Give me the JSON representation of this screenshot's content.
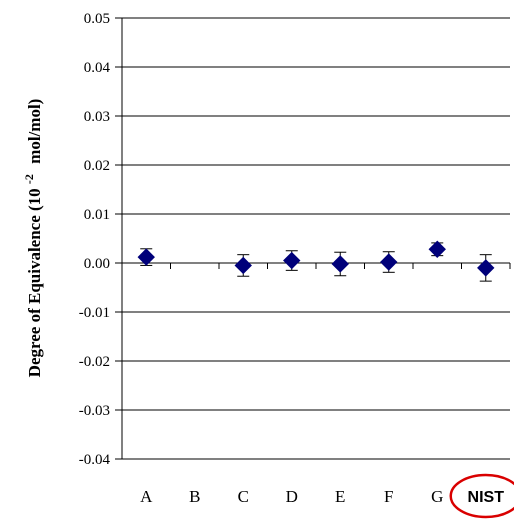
{
  "chart_data": {
    "type": "scatter",
    "title": "",
    "xlabel": "",
    "ylabel": "Degree of Equivalence (10",
    "ylabel_exponent": "-2",
    "ylabel_unit": "mol/mol)",
    "categories": [
      "A",
      "B",
      "C",
      "D",
      "E",
      "F",
      "G",
      "NIST"
    ],
    "highlight_category": "NIST",
    "highlight_color": "#d90000",
    "marker_color": "#00007a",
    "ylim": [
      -0.04,
      0.05
    ],
    "yticks": [
      0.05,
      0.04,
      0.03,
      0.02,
      0.01,
      0.0,
      -0.01,
      -0.02,
      -0.03,
      -0.04
    ],
    "ytick_labels": [
      "0.05",
      "0.04",
      "0.03",
      "0.02",
      "0.01",
      "0.00",
      "-0.01",
      "-0.02",
      "-0.03",
      "-0.04"
    ],
    "grid": true,
    "series": [
      {
        "values": [
          0.0012,
          null,
          -0.0005,
          0.0005,
          -0.0002,
          0.0002,
          0.0028,
          -0.001
        ],
        "error": [
          0.0017,
          null,
          0.0022,
          0.002,
          0.0024,
          0.0021,
          0.0013,
          0.0027
        ]
      }
    ]
  }
}
